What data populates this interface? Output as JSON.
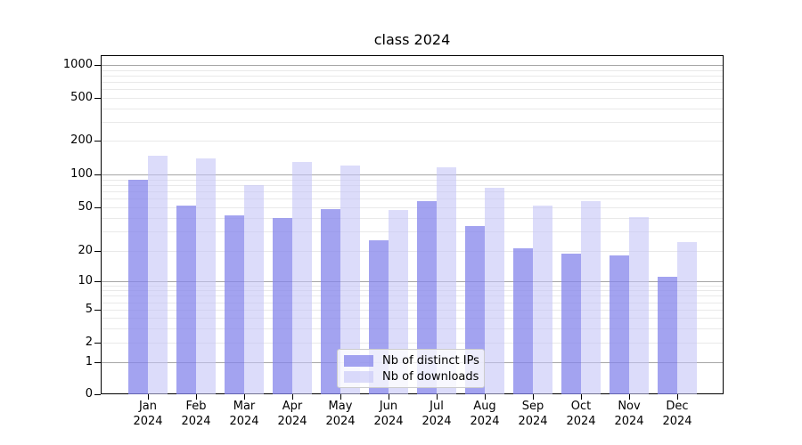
{
  "chart_data": {
    "type": "bar",
    "title": "class 2024",
    "categories": [
      "Jan",
      "Feb",
      "Mar",
      "Apr",
      "May",
      "Jun",
      "Jul",
      "Aug",
      "Sep",
      "Oct",
      "Nov",
      "Dec"
    ],
    "x_year_label": "2024",
    "series": [
      {
        "name": "Nb of distinct IPs",
        "color": "rgba(132,132,235,0.75)",
        "values": [
          90,
          52,
          42,
          40,
          48,
          25,
          57,
          34,
          21,
          19,
          18,
          11
        ]
      },
      {
        "name": "Nb of downloads",
        "color": "rgba(196,196,246,0.6)",
        "values": [
          148,
          138,
          80,
          130,
          120,
          47,
          115,
          75,
          52,
          57,
          41,
          24
        ]
      }
    ],
    "y_ticks": [
      0,
      1,
      2,
      5,
      10,
      20,
      50,
      100,
      200,
      500,
      1000
    ],
    "y_scale": "symlog",
    "ylim": [
      0,
      1230
    ],
    "grid": true,
    "gridlines_major": [
      1,
      10,
      100,
      1000
    ],
    "gridlines_minor": [
      2,
      3,
      4,
      5,
      6,
      7,
      8,
      9,
      20,
      30,
      40,
      50,
      60,
      70,
      80,
      90,
      200,
      300,
      400,
      500,
      600,
      700,
      800,
      900
    ],
    "legend_position": "lower center"
  }
}
